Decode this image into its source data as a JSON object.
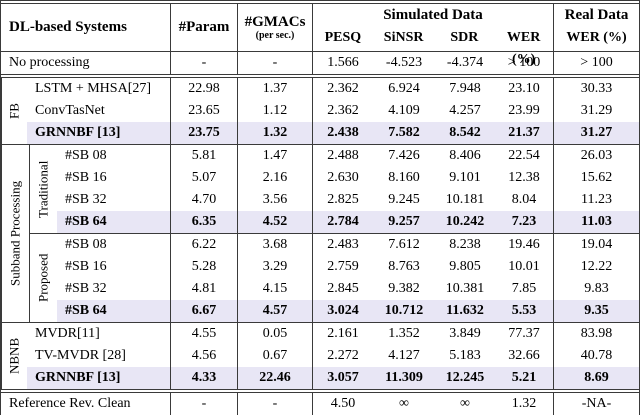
{
  "header": {
    "systems": "DL-based Systems",
    "param": "#Param",
    "gmacs": "#GMACs",
    "gmacs_unit": "(per sec.)",
    "simulated": "Simulated Data",
    "sim_cols": [
      "PESQ",
      "SiNSR",
      "SDR",
      "WER (%)"
    ],
    "real": "Real Data",
    "real_col": "WER (%)"
  },
  "no_processing": {
    "name": "No processing",
    "values": [
      "-",
      "-",
      "1.566",
      "-4.523",
      "-4.374",
      "> 100",
      "> 100"
    ]
  },
  "fb": {
    "label": "FB",
    "rows": [
      {
        "name": "LSTM + MHSA[27]",
        "values": [
          "22.98",
          "1.37",
          "2.362",
          "6.924",
          "7.948",
          "23.10",
          "30.33"
        ]
      },
      {
        "name": "ConvTasNet",
        "values": [
          "23.65",
          "1.12",
          "2.362",
          "4.109",
          "4.257",
          "23.99",
          "31.29"
        ]
      },
      {
        "name": "GRNNBF [13]",
        "values": [
          "23.75",
          "1.32",
          "2.438",
          "7.582",
          "8.542",
          "21.37",
          "31.27"
        ]
      }
    ]
  },
  "subband": {
    "label": "Subband Processing",
    "traditional": {
      "label": "Traditional",
      "rows": [
        {
          "name": "#SB 08",
          "values": [
            "5.81",
            "1.47",
            "2.488",
            "7.426",
            "8.406",
            "22.54",
            "26.03"
          ]
        },
        {
          "name": "#SB 16",
          "values": [
            "5.07",
            "2.16",
            "2.630",
            "8.160",
            "9.101",
            "12.38",
            "15.62"
          ]
        },
        {
          "name": "#SB 32",
          "values": [
            "4.70",
            "3.56",
            "2.825",
            "9.245",
            "10.181",
            "8.04",
            "11.23"
          ]
        },
        {
          "name": "#SB 64",
          "values": [
            "6.35",
            "4.52",
            "2.784",
            "9.257",
            "10.242",
            "7.23",
            "11.03"
          ]
        }
      ]
    },
    "proposed": {
      "label": "Proposed",
      "rows": [
        {
          "name": "#SB 08",
          "values": [
            "6.22",
            "3.68",
            "2.483",
            "7.612",
            "8.238",
            "19.46",
            "19.04"
          ]
        },
        {
          "name": "#SB 16",
          "values": [
            "5.28",
            "3.29",
            "2.759",
            "8.763",
            "9.805",
            "10.01",
            "12.22"
          ]
        },
        {
          "name": "#SB 32",
          "values": [
            "4.81",
            "4.15",
            "2.845",
            "9.382",
            "10.381",
            "7.85",
            "9.83"
          ]
        },
        {
          "name": "#SB 64",
          "values": [
            "6.67",
            "4.57",
            "3.024",
            "10.712",
            "11.632",
            "5.53",
            "9.35"
          ]
        }
      ]
    }
  },
  "nbnb": {
    "label": "NBNB",
    "rows": [
      {
        "name": "MVDR[11]",
        "values": [
          "4.55",
          "0.05",
          "2.161",
          "1.352",
          "3.849",
          "77.37",
          "83.98"
        ]
      },
      {
        "name": "TV-MVDR [28]",
        "values": [
          "4.56",
          "0.67",
          "2.272",
          "4.127",
          "5.183",
          "32.66",
          "40.78"
        ]
      },
      {
        "name": "GRNNBF [13]",
        "values": [
          "4.33",
          "22.46",
          "3.057",
          "11.309",
          "12.245",
          "5.21",
          "8.69"
        ]
      }
    ]
  },
  "reference": {
    "name": "Reference Rev. Clean",
    "values": [
      "-",
      "-",
      "4.50",
      "∞",
      "∞",
      "1.32",
      "-NA-"
    ]
  },
  "colors": {
    "highlight_row": "#e8e6f5",
    "rule": "#3a3a3a"
  }
}
